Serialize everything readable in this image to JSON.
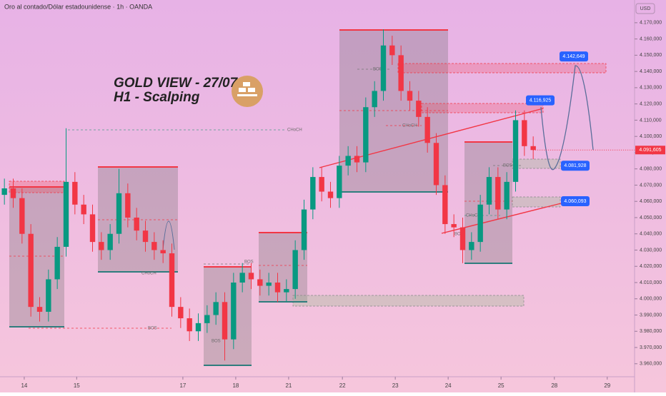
{
  "chart_data": {
    "type": "candlestick",
    "header": "Oro al contado/Dólar estadounidense · 1h · OANDA",
    "title": "GOLD VIEW - 27/07",
    "subtitle": "H1 - Scalping",
    "currency": "USD",
    "up_color": "#089981",
    "down_color": "#f23645",
    "open": [
      4064,
      4068,
      4062,
      4040,
      3995,
      3992,
      4012,
      4032,
      4072,
      4058,
      4052,
      4035,
      4030,
      4040,
      4065,
      4050,
      4042,
      4035,
      4030,
      4028,
      3995,
      3988,
      3980,
      3985,
      3990,
      3998,
      3975,
      4010,
      4016,
      4012,
      4008,
      4010,
      4004,
      4006,
      4030,
      4055,
      4075,
      4066,
      4062,
      4082,
      4088,
      4084,
      4118,
      4128,
      4156,
      4150,
      4128,
      4122,
      4112,
      4096,
      4070,
      4046,
      4044,
      4030,
      4035,
      4058,
      4075,
      4055,
      4072,
      4110,
      4094
    ],
    "high": [
      4074,
      4074,
      4068,
      4046,
      4001,
      4018,
      4038,
      4105,
      4078,
      4064,
      4058,
      4041,
      4046,
      4080,
      4071,
      4056,
      4048,
      4041,
      4036,
      4034,
      4001,
      3994,
      3991,
      3996,
      4004,
      4004,
      4016,
      4022,
      4022,
      4018,
      4016,
      4016,
      4012,
      4036,
      4061,
      4081,
      4081,
      4072,
      4088,
      4094,
      4094,
      4124,
      4134,
      4166,
      4162,
      4156,
      4134,
      4128,
      4118,
      4102,
      4076,
      4052,
      4050,
      4041,
      4064,
      4081,
      4081,
      4078,
      4116,
      4116,
      4100
    ],
    "low": [
      4058,
      4056,
      4034,
      3989,
      3986,
      3986,
      4006,
      4026,
      4052,
      4046,
      4029,
      4024,
      4024,
      4034,
      4044,
      4036,
      4029,
      4024,
      4022,
      3989,
      3982,
      3974,
      3974,
      3979,
      3984,
      3962,
      3969,
      4004,
      4006,
      4002,
      4002,
      3998,
      3998,
      4000,
      4024,
      4049,
      4060,
      4056,
      4056,
      4076,
      4078,
      4078,
      4112,
      4122,
      4144,
      4122,
      4116,
      4106,
      4090,
      4064,
      4040,
      4038,
      4022,
      4024,
      4029,
      4052,
      4049,
      4049,
      4066,
      4088,
      4086
    ],
    "close": [
      4068,
      4062,
      4040,
      3995,
      3992,
      4012,
      4032,
      4072,
      4058,
      4052,
      4035,
      4030,
      4040,
      4065,
      4050,
      4042,
      4035,
      4030,
      4028,
      3995,
      3988,
      3980,
      3985,
      3990,
      3998,
      3975,
      4010,
      4016,
      4012,
      4008,
      4010,
      4004,
      4006,
      4030,
      4055,
      4075,
      4066,
      4062,
      4082,
      4088,
      4084,
      4118,
      4128,
      4156,
      4150,
      4128,
      4122,
      4112,
      4096,
      4070,
      4046,
      4044,
      4030,
      4035,
      4058,
      4075,
      4055,
      4072,
      4110,
      4094,
      4091.605
    ],
    "xlim": [
      -0.5,
      71.5
    ],
    "xticks": [
      {
        "value": 2.25,
        "label": "14"
      },
      {
        "value": 8.2,
        "label": "15"
      },
      {
        "value": 20.25,
        "label": "17"
      },
      {
        "value": 26.25,
        "label": "18"
      },
      {
        "value": 32.25,
        "label": "21"
      },
      {
        "value": 38.35,
        "label": "22"
      },
      {
        "value": 44.35,
        "label": "23"
      },
      {
        "value": 50.35,
        "label": "24"
      },
      {
        "value": 56.35,
        "label": "25"
      },
      {
        "value": 62.4,
        "label": "28"
      },
      {
        "value": 68.4,
        "label": "29"
      }
    ],
    "ylim": [
      3952.0,
      4184.0
    ],
    "yticks": [
      {
        "value": 4170,
        "label": "4.170,000"
      },
      {
        "value": 4160,
        "label": "4.160,000"
      },
      {
        "value": 4150,
        "label": "4.150,000"
      },
      {
        "value": 4140,
        "label": "4.140,000"
      },
      {
        "value": 4130,
        "label": "4.130,000"
      },
      {
        "value": 4120,
        "label": "4.120,000"
      },
      {
        "value": 4110,
        "label": "4.110,000"
      },
      {
        "value": 4100,
        "label": "4.100,000"
      },
      {
        "value": 4090,
        "label": "4.090,000"
      },
      {
        "value": 4080,
        "label": "4.080,000"
      },
      {
        "value": 4070,
        "label": "4.070,000"
      },
      {
        "value": 4060,
        "label": "4.060,000"
      },
      {
        "value": 4050,
        "label": "4.050,000"
      },
      {
        "value": 4040,
        "label": "4.040,000"
      },
      {
        "value": 4030,
        "label": "4.030,000"
      },
      {
        "value": 4020,
        "label": "4.020,000"
      },
      {
        "value": 4010,
        "label": "4.010,000"
      },
      {
        "value": 4000,
        "label": "4.000,000"
      },
      {
        "value": 3990,
        "label": "3.990,000"
      },
      {
        "value": 3980,
        "label": "3.980,000"
      },
      {
        "value": 3970,
        "label": "3.970,000"
      },
      {
        "value": 3960,
        "label": "3.960,000"
      }
    ],
    "last_price": {
      "value": 4091.605,
      "label": "4.091,605"
    },
    "price_tags": [
      {
        "value": 4142.649,
        "label": "4.142,649"
      },
      {
        "value": 4116.925,
        "label": "4.116,925"
      },
      {
        "value": 4081.928,
        "label": "4.081,928"
      },
      {
        "value": 4060.093,
        "label": "4.060,093"
      }
    ],
    "structure_labels": [
      "CHoCH",
      "CHoCH",
      "CHoCH",
      "CHoCH",
      "BOS",
      "BOS",
      "BOS",
      "BOS",
      "BOS",
      "BOS"
    ]
  }
}
